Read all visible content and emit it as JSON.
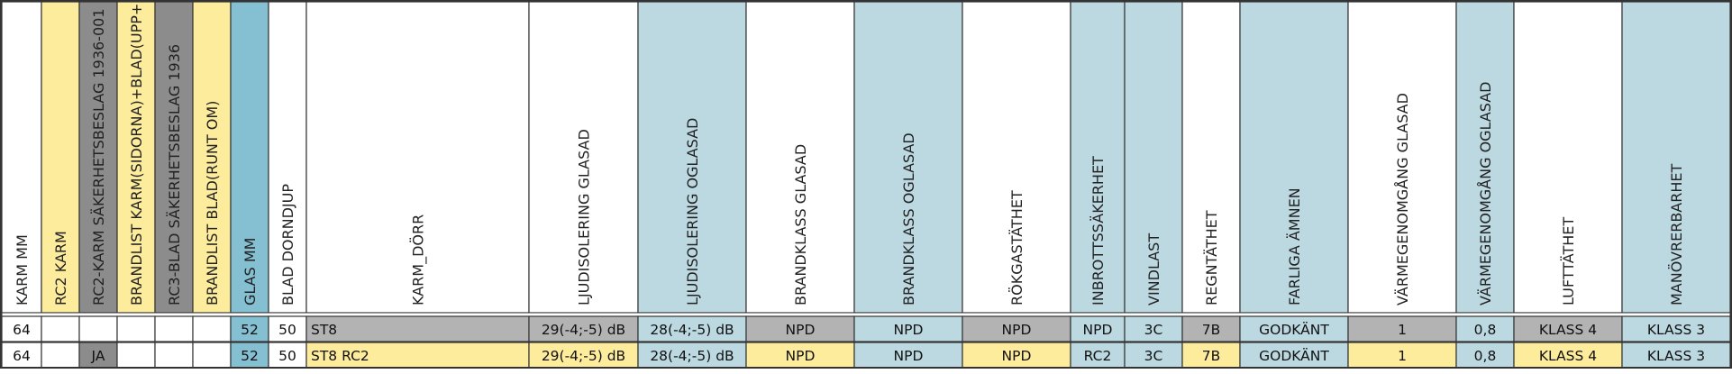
{
  "colors": {
    "yellow": "#fcec9c",
    "gray": "#8c8c8c",
    "cell_gray": "#b3b3b3",
    "light_blue": "#bcd9e2",
    "mid_blue": "#85bfd2",
    "white": "#ffffff",
    "grid": "#333333"
  },
  "headers": [
    "KARM MM",
    "RC2 KARM",
    "RC2-KARM SÄKERHETSBESLAG 1936-001",
    "BRANDLIST KARM(SIDORNA)+BLAD(UPP+NER",
    "RC3-BLAD SÄKERHETSBESLAG 1936",
    "BRANDLIST BLAD(RUNT OM)",
    "GLAS MM",
    "BLAD DORNDJUP",
    "KARM_DÖRR",
    "LJUDISOLERING GLASAD",
    "LJUDISOLERING OGLASAD",
    "BRANDKLASS GLASAD",
    "BRANDKLASS OGLASAD",
    "RÖKGASTÄTHET",
    "INBROTTSSÄKERHET",
    "VINDLAST",
    "REGNTÄTHET",
    "FARLIGA ÄMNEN",
    "VÄRMEGENOMGÅNG GLASAD",
    "VÄRMEGENOMGÅNG OGLASAD",
    "LUFTTÄTHET",
    "MANÖVRERBARHET"
  ],
  "rows": [
    [
      "64",
      "",
      "",
      "",
      "",
      "",
      "52",
      "50",
      "ST8",
      "29(-4;-5) dB",
      "28(-4;-5) dB",
      "NPD",
      "NPD",
      "NPD",
      "NPD",
      "3C",
      "7B",
      "GODKÄNT",
      "1",
      "0,8",
      "KLASS 4",
      "KLASS 3"
    ],
    [
      "64",
      "",
      "JA",
      "",
      "",
      "",
      "52",
      "50",
      "ST8 RC2",
      "29(-4;-5) dB",
      "28(-4;-5) dB",
      "NPD",
      "NPD",
      "NPD",
      "RC2",
      "3C",
      "7B",
      "GODKÄNT",
      "1",
      "0,8",
      "KLASS 4",
      "KLASS 3"
    ]
  ]
}
